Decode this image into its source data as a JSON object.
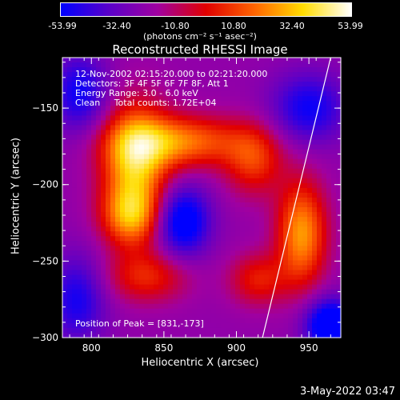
{
  "colorbar": {
    "ticks": [
      "-53.99",
      "-32.40",
      "-10.80",
      "10.80",
      "32.40",
      "53.99"
    ],
    "unit": "(photons cm⁻² s⁻¹ asec⁻²)",
    "colors": [
      "#0000ff",
      "#5a00c8",
      "#a000a0",
      "#e00000",
      "#ff6400",
      "#ffdc00",
      "#ffffff"
    ]
  },
  "plot": {
    "title": "Reconstructed RHESSI Image",
    "info_lines": [
      "12-Nov-2002 02:15:20.000 to 02:21:20.000",
      "Detectors: 3F 4F 5F 6F 7F 8F, Att 1",
      "Energy Range: 3.0 - 6.0 keV",
      "Clean     Total counts: 1.72E+04"
    ],
    "peak_text": "Position of Peak = [831,-173]",
    "date_stamp": "3-May-2022 03:47"
  },
  "chart_data": {
    "type": "heatmap",
    "title": "Reconstructed RHESSI Image",
    "xlabel": "Heliocentric X (arcsec)",
    "ylabel": "Heliocentric Y (arcsec)",
    "xlim": [
      780,
      972
    ],
    "ylim": [
      -300,
      -117
    ],
    "xticks": [
      800,
      850,
      900,
      950
    ],
    "xtick_labels": [
      "800",
      "850",
      "900",
      "950"
    ],
    "yticks": [
      -300,
      -250,
      -200,
      -150
    ],
    "ytick_labels": [
      "-300",
      "-250",
      "-200",
      "-150"
    ],
    "value_range": [
      -53.99,
      53.99
    ],
    "peak": [
      831,
      -173
    ],
    "limb_line": [
      [
        918,
        -300
      ],
      [
        965,
        -117
      ]
    ],
    "sources": [
      {
        "x": 830,
        "y": -185,
        "sx": 16,
        "sy": 26,
        "amp": 54
      },
      {
        "x": 827,
        "y": -221,
        "sx": 14,
        "sy": 14,
        "amp": 40
      },
      {
        "x": 862,
        "y": -172,
        "sx": 30,
        "sy": 12,
        "amp": 42
      },
      {
        "x": 912,
        "y": -184,
        "sx": 14,
        "sy": 16,
        "amp": 30
      },
      {
        "x": 945,
        "y": -232,
        "sx": 12,
        "sy": 24,
        "amp": 48
      },
      {
        "x": 915,
        "y": -262,
        "sx": 14,
        "sy": 12,
        "amp": 26
      },
      {
        "x": 838,
        "y": -260,
        "sx": 20,
        "sy": 12,
        "amp": 28
      },
      {
        "x": 863,
        "y": -224,
        "sx": 13,
        "sy": 16,
        "amp": -42
      },
      {
        "x": 950,
        "y": -150,
        "sx": 18,
        "sy": 16,
        "amp": -30
      },
      {
        "x": 792,
        "y": -140,
        "sx": 14,
        "sy": 18,
        "amp": -30
      },
      {
        "x": 965,
        "y": -292,
        "sx": 12,
        "sy": 12,
        "amp": -50
      },
      {
        "x": 790,
        "y": -275,
        "sx": 14,
        "sy": 20,
        "amp": -28
      }
    ],
    "base_level": -22
  }
}
